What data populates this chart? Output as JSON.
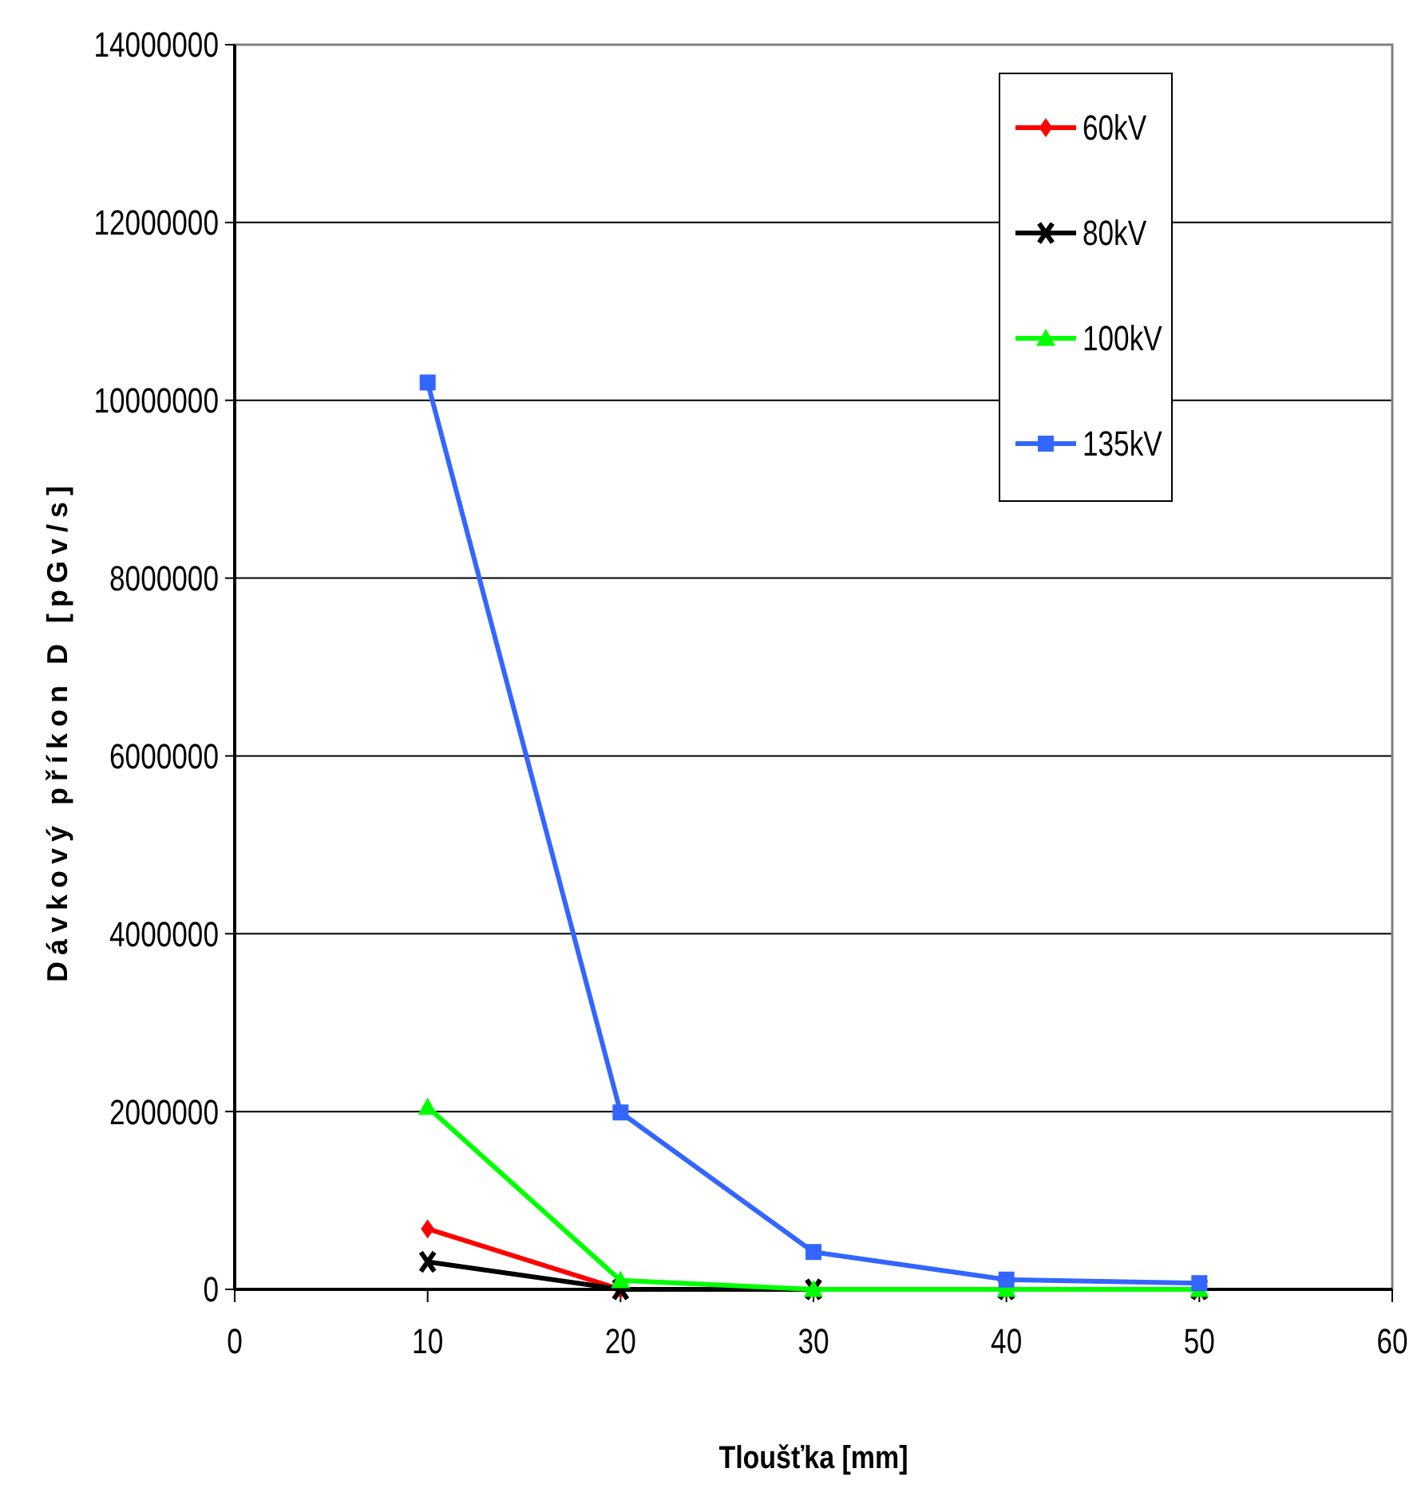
{
  "chart_data": {
    "type": "line",
    "xlabel": "Tloušťka [mm]",
    "ylabel": "Dávkový příkon D [pGv/s]",
    "x": [
      10,
      20,
      30,
      40,
      50
    ],
    "xlim": [
      0,
      60
    ],
    "xticks": [
      0,
      10,
      20,
      30,
      40,
      50,
      60
    ],
    "ylim": [
      0,
      14000000
    ],
    "yticks": [
      0,
      2000000,
      4000000,
      6000000,
      8000000,
      10000000,
      12000000,
      14000000
    ],
    "grid": "y",
    "legend": "top right",
    "series": [
      {
        "name": "60kV",
        "color": "#ff0000",
        "marker": "diamond",
        "values": [
          680000,
          0,
          null,
          null,
          null
        ]
      },
      {
        "name": "80kV",
        "color": "#000000",
        "marker": "cross",
        "values": [
          310000,
          0,
          0,
          0,
          0
        ]
      },
      {
        "name": "100kV",
        "color": "#00ff00",
        "marker": "triangle",
        "values": [
          2050000,
          100000,
          0,
          0,
          0
        ]
      },
      {
        "name": "135kV",
        "color": "#3366ff",
        "marker": "square",
        "values": [
          10200000,
          1990000,
          420000,
          110000,
          70000
        ]
      }
    ]
  }
}
